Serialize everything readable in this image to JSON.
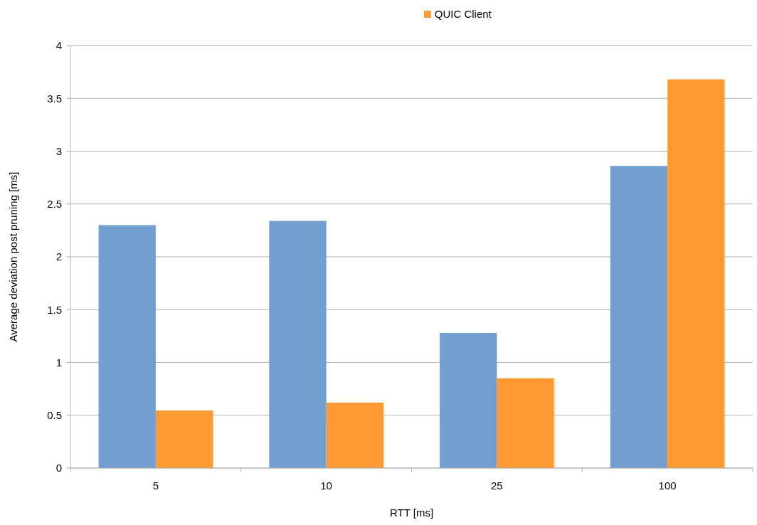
{
  "chart_data": {
    "type": "bar",
    "categories": [
      "5",
      "10",
      "25",
      "100"
    ],
    "series": [
      {
        "color": "#729fcf",
        "values": [
          2.3,
          2.34,
          1.28,
          2.86
        ]
      },
      {
        "name": "QUIC Client",
        "color": "#ff9933",
        "values": [
          0.545,
          0.62,
          0.85,
          3.68
        ]
      }
    ],
    "xlabel": "RTT [ms]",
    "ylabel": "Average deviation post pruning [ms]",
    "ylim": [
      0,
      4
    ],
    "yticks": [
      0,
      0.5,
      1,
      1.5,
      2,
      2.5,
      3,
      3.5,
      4
    ],
    "grid": "y",
    "legend": "top"
  }
}
